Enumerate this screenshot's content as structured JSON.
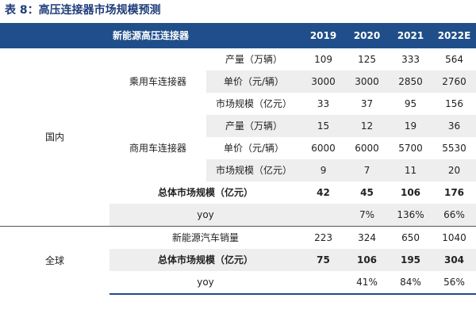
{
  "caption": "表 8：高压连接器市场规模预测",
  "header": {
    "label": "新能源高压连接器",
    "years": [
      "2019",
      "2020",
      "2021",
      "2022E"
    ]
  },
  "domestic": {
    "region": "国内",
    "passenger": {
      "category": "乘用车连接器",
      "rows": [
        {
          "metric": "产量（万辆）",
          "values": [
            "109",
            "125",
            "333",
            "564"
          ]
        },
        {
          "metric": "单价（元/辆）",
          "values": [
            "3000",
            "3000",
            "2850",
            "2760"
          ]
        },
        {
          "metric": "市场规模（亿元）",
          "values": [
            "33",
            "37",
            "95",
            "156"
          ]
        }
      ]
    },
    "commercial": {
      "category": "商用车连接器",
      "rows": [
        {
          "metric": "产量（万辆）",
          "values": [
            "15",
            "12",
            "19",
            "36"
          ]
        },
        {
          "metric": "单价（元/辆）",
          "values": [
            "6000",
            "6000",
            "5700",
            "5530"
          ]
        },
        {
          "metric": "市场规模（亿元）",
          "values": [
            "9",
            "7",
            "11",
            "20"
          ]
        }
      ]
    },
    "total": {
      "label": "总体市场规模（亿元）",
      "values": [
        "42",
        "45",
        "106",
        "176"
      ]
    },
    "yoy": {
      "label": "yoy",
      "values": [
        "",
        "7%",
        "136%",
        "66%"
      ]
    }
  },
  "global": {
    "region": "全球",
    "sales": {
      "label": "新能源汽车销量",
      "values": [
        "223",
        "324",
        "650",
        "1040"
      ]
    },
    "total": {
      "label": "总体市场规模（亿元）",
      "values": [
        "75",
        "106",
        "195",
        "304"
      ]
    },
    "yoy": {
      "label": "yoy",
      "values": [
        "",
        "41%",
        "84%",
        "56%"
      ]
    }
  }
}
